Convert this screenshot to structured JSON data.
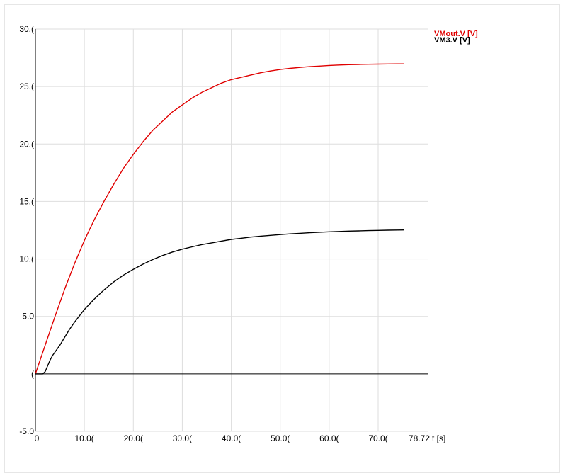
{
  "chart_data": {
    "type": "line",
    "title": "",
    "xlabel": "t [s]",
    "ylabel": "",
    "xlim": [
      0,
      78.72
    ],
    "ylim": [
      -5.0,
      30.0
    ],
    "x_ticks": [
      {
        "value": 0,
        "label": "0"
      },
      {
        "value": 10,
        "label": "10.0("
      },
      {
        "value": 20,
        "label": "20.0("
      },
      {
        "value": 30,
        "label": "30.0("
      },
      {
        "value": 40,
        "label": "40.0("
      },
      {
        "value": 50,
        "label": "50.0("
      },
      {
        "value": 60,
        "label": "60.0("
      },
      {
        "value": 70,
        "label": "70.0("
      },
      {
        "value": 78.72,
        "label": "78.72"
      }
    ],
    "y_ticks": [
      {
        "value": -5,
        "label": "-5.0"
      },
      {
        "value": 0,
        "label": "("
      },
      {
        "value": 5,
        "label": "5.0"
      },
      {
        "value": 10,
        "label": "10.("
      },
      {
        "value": 15,
        "label": "15.("
      },
      {
        "value": 20,
        "label": "20.("
      },
      {
        "value": 25,
        "label": "25.("
      },
      {
        "value": 30,
        "label": "30.("
      }
    ],
    "grid": true,
    "legend_position": "top-right",
    "series": [
      {
        "name": "VMout.V [V]",
        "color": "#e00000",
        "x": [
          0,
          2,
          4,
          6,
          8,
          10,
          12,
          14,
          16,
          18,
          20,
          22,
          24,
          26,
          28,
          30,
          32,
          34,
          36,
          38,
          40,
          42,
          44,
          46,
          48,
          50,
          52,
          54,
          56,
          58,
          60,
          62,
          64,
          66,
          68,
          70,
          72,
          74,
          75.3
        ],
        "y": [
          0,
          2.5,
          5.0,
          7.4,
          9.6,
          11.6,
          13.4,
          15.0,
          16.5,
          17.9,
          19.1,
          20.2,
          21.2,
          22.0,
          22.8,
          23.4,
          24.0,
          24.5,
          24.9,
          25.3,
          25.6,
          25.8,
          26.0,
          26.2,
          26.35,
          26.48,
          26.58,
          26.66,
          26.73,
          26.78,
          26.83,
          26.87,
          26.9,
          26.92,
          26.94,
          26.95,
          26.96,
          26.97,
          26.97
        ]
      },
      {
        "name": "VM3.V [V]",
        "color": "#000000",
        "x": [
          0,
          1.5,
          2,
          2.5,
          3,
          3.5,
          4,
          5,
          6,
          7,
          8,
          10,
          12,
          14,
          16,
          18,
          20,
          22,
          24,
          26,
          28,
          30,
          32,
          34,
          36,
          38,
          40,
          42,
          44,
          46,
          48,
          50,
          52,
          54,
          56,
          58,
          60,
          62,
          64,
          66,
          68,
          70,
          72,
          74,
          75.3
        ],
        "y": [
          0,
          0,
          0.2,
          0.7,
          1.2,
          1.6,
          1.9,
          2.5,
          3.2,
          3.9,
          4.5,
          5.6,
          6.5,
          7.3,
          8.0,
          8.6,
          9.1,
          9.55,
          9.95,
          10.3,
          10.6,
          10.85,
          11.05,
          11.25,
          11.4,
          11.55,
          11.7,
          11.8,
          11.9,
          11.98,
          12.05,
          12.12,
          12.18,
          12.23,
          12.28,
          12.32,
          12.36,
          12.39,
          12.42,
          12.44,
          12.46,
          12.48,
          12.5,
          12.51,
          12.52
        ]
      }
    ]
  }
}
